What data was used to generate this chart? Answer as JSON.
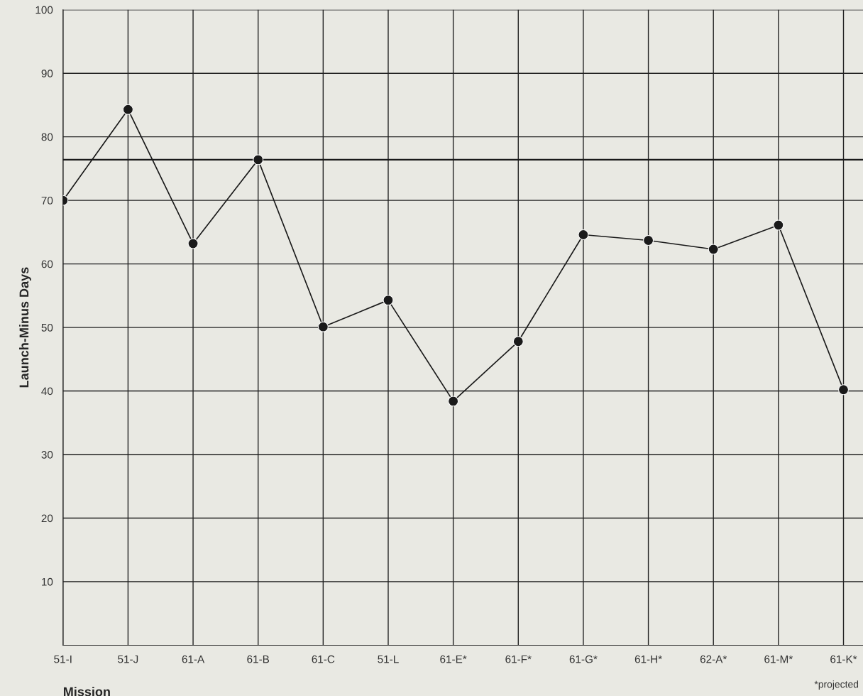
{
  "chart_data": {
    "type": "line",
    "xlabel": "Mission",
    "ylabel": "Launch-Minus Days",
    "categories": [
      "51-I",
      "51-J",
      "61-A",
      "61-B",
      "61-C",
      "51-L",
      "61-E*",
      "61-F*",
      "61-G*",
      "61-H*",
      "62-A*",
      "61-M*",
      "61-K*"
    ],
    "series": [
      {
        "color": "#1a1a1a",
        "values": [
          70,
          84.3,
          63.2,
          76.4,
          50.1,
          54.3,
          38.4,
          47.8,
          64.6,
          63.7,
          62.3,
          66.1,
          40.2
        ]
      }
    ],
    "ylim": [
      0,
      100
    ],
    "yticks": [
      10,
      20,
      30,
      40,
      50,
      60,
      70,
      80,
      90,
      100
    ],
    "grid": true,
    "marker": "circle",
    "line_style": "solid",
    "ref_lines": [
      {
        "axis": "y",
        "value": 76.4,
        "color": "#1a1a1a"
      }
    ],
    "annotations": [
      "*projected"
    ]
  }
}
